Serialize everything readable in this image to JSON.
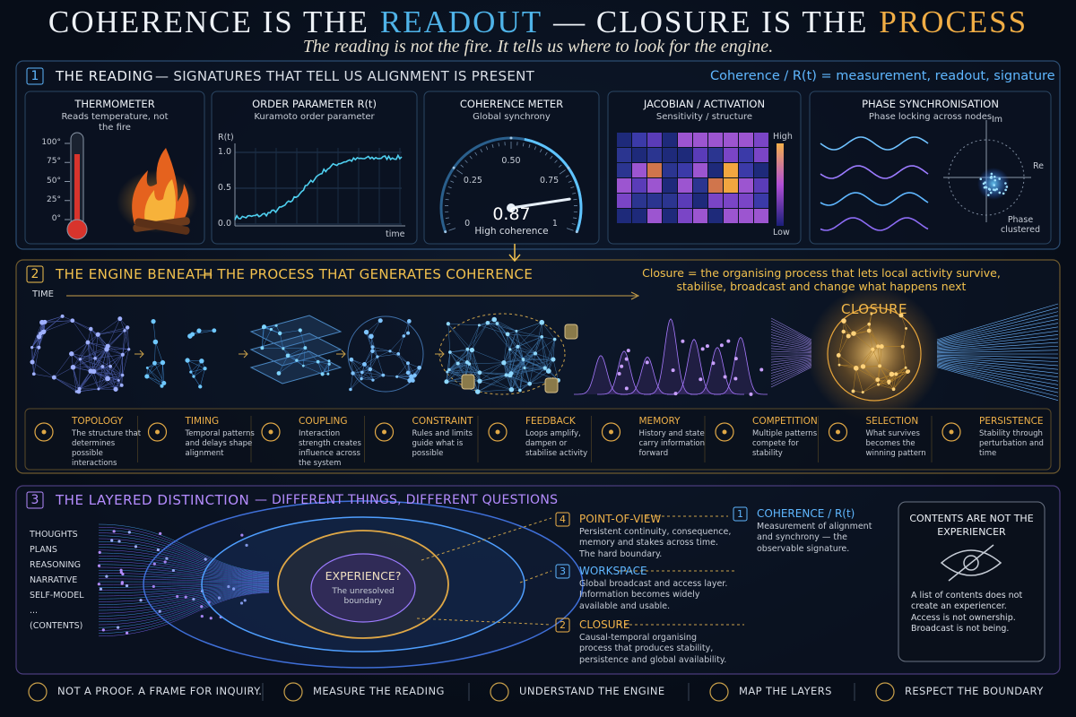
{
  "header": {
    "title": [
      "COHERENCE IS THE",
      "READOUT",
      "— CLOSURE IS THE",
      "PROCESS"
    ],
    "subtitle": "The reading is not the fire. It tells us where to look for the engine."
  },
  "reading": {
    "number": "1",
    "title": "THE READING",
    "subtitle": "— SIGNATURES THAT TELL US ALIGNMENT IS PRESENT",
    "note": "Coherence / R(t) = measurement, readout, signature",
    "thermometer": {
      "title": "THERMOMETER",
      "text": "Reads temperature, not the fire",
      "ticks": [
        {
          "value": 100,
          "label": "100°"
        },
        {
          "value": 75,
          "label": "75°"
        },
        {
          "value": 50,
          "label": "50°"
        },
        {
          "value": 25,
          "label": "25°"
        },
        {
          "value": 0,
          "label": "0°"
        }
      ]
    },
    "order_parameter": {
      "title": "ORDER PARAMETER  R(t)",
      "text": "Kuramoto order parameter",
      "y_label": "R(t)",
      "x_label": "time",
      "yticks": [
        {
          "value": 1,
          "label": "1.0"
        },
        0.5,
        {
          "value": 0,
          "label": "0.0"
        }
      ]
    },
    "meter": {
      "title": "COHERENCE METER",
      "text": "Global synchrony",
      "ticks": [
        0,
        0.25,
        {
          "value": 0.5,
          "label": "0.50"
        },
        0.75,
        1
      ],
      "value": 0.87,
      "caption": "High coherence"
    },
    "jacobian": {
      "title": "JACOBIAN / ACTIVATION",
      "text": "Sensitivity / structure",
      "high": "High",
      "low": "Low"
    },
    "phase": {
      "title": "PHASE SYNCHRONISATION",
      "text": "Phase locking across nodes",
      "im": "Im",
      "re": "Re",
      "caption": "Phase clustered"
    }
  },
  "engine": {
    "number": "2",
    "title": "THE ENGINE BENEATH",
    "subtitle": "— THE PROCESS THAT GENERATES COHERENCE",
    "note": "Closure = the organising process that lets local activity survive, stabilise, broadcast and change what happens next",
    "time": "TIME",
    "closure": "CLOSURE",
    "items": [
      {
        "title": "TOPOLOGY",
        "text": "The structure that determines possible interactions"
      },
      {
        "title": "TIMING",
        "text": "Temporal patterns and delays shape alignment"
      },
      {
        "title": "COUPLING",
        "text": "Interaction strength creates influence across the system"
      },
      {
        "title": "CONSTRAINT",
        "text": "Rules and limits guide what is possible"
      },
      {
        "title": "FEEDBACK",
        "text": "Loops amplify, dampen or stabilise activity"
      },
      {
        "title": "MEMORY",
        "text": "History and state carry information forward"
      },
      {
        "title": "COMPETITION",
        "text": "Multiple patterns compete for stability"
      },
      {
        "title": "SELECTION",
        "text": "What survives becomes the winning pattern"
      },
      {
        "title": "PERSISTENCE",
        "text": "Stability through perturbation and time"
      }
    ]
  },
  "layers": {
    "number": "3",
    "title": "THE LAYERED DISTINCTION",
    "subtitle": "— DIFFERENT THINGS, DIFFERENT QUESTIONS",
    "contents": [
      "THOUGHTS",
      "PLANS",
      "REASONING",
      "NARRATIVE",
      "SELF-MODEL",
      "...",
      "(CONTENTS)"
    ],
    "center": {
      "title": "EXPERIENCE?",
      "text": "The unresolved boundary"
    },
    "levels": [
      {
        "number": "4",
        "title": "POINT-OF-VIEW",
        "text": "Persistent continuity, consequence, memory and stakes across time. The hard boundary."
      },
      {
        "number": "3",
        "title": "WORKSPACE",
        "text": "Global broadcast and access layer. Information becomes widely available and usable."
      },
      {
        "number": "2",
        "title": "CLOSURE",
        "text": "Causal-temporal organising process that produces stability, persistence and global availability."
      },
      {
        "number": "1",
        "title": "COHERENCE / R(t)",
        "text": "Measurement of alignment and synchrony — the observable signature."
      }
    ],
    "box": {
      "title": "CONTENTS ARE NOT THE EXPERIENCER",
      "text": "A list of contents does not create an experiencer. Access is not ownership. Broadcast is not being."
    }
  },
  "footer": [
    "NOT A PROOF.  A FRAME FOR INQUIRY.",
    "MEASURE THE READING",
    "UNDERSTAND THE ENGINE",
    "MAP THE LAYERS",
    "RESPECT THE BOUNDARY"
  ]
}
